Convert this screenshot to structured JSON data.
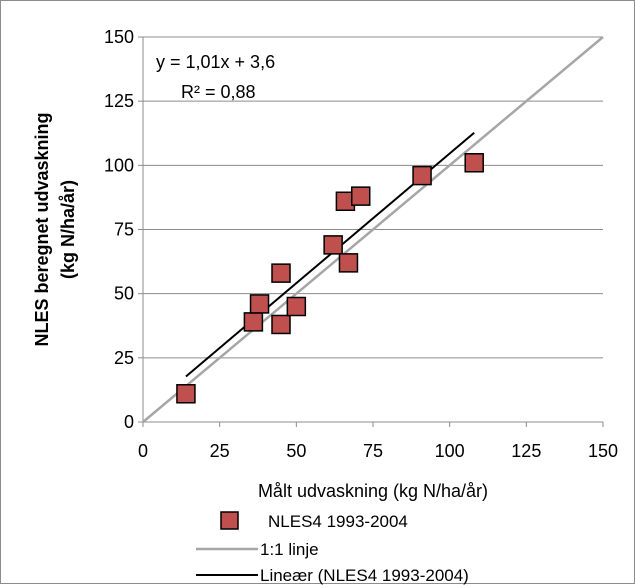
{
  "chart_data": {
    "type": "scatter",
    "xlabel": "Målt udvaskning (kg N/ha/år)",
    "ylabel_line1": "NLES beregnet udvaskning",
    "ylabel_line2": "(kg N/ha/år)",
    "xlim": [
      0,
      150
    ],
    "ylim": [
      0,
      150
    ],
    "xticks": [
      "0",
      "25",
      "50",
      "75",
      "100",
      "125",
      "150"
    ],
    "yticks": [
      "0",
      "25",
      "50",
      "75",
      "100",
      "125",
      "150"
    ],
    "grid": "horizontal",
    "legend_position": "bottom",
    "annotation": {
      "equation": "y = 1,01x + 3,6",
      "r2": "R² = 0,88"
    },
    "series": [
      {
        "name": "NLES4 1993-2004",
        "kind": "markers",
        "marker": "square",
        "color": "#c0504d",
        "edge_color": "#000000",
        "x": [
          14,
          36,
          38,
          45,
          45,
          50,
          62,
          66,
          67,
          71,
          91,
          108
        ],
        "y": [
          11,
          39,
          46,
          58,
          38,
          45,
          69,
          86,
          62,
          88,
          96,
          101
        ]
      },
      {
        "name": "1:1 linje",
        "kind": "line",
        "color": "#a6a6a6",
        "x": [
          0,
          150
        ],
        "y": [
          0,
          150
        ]
      },
      {
        "name": "Lineær (NLES4 1993-2004)",
        "kind": "line",
        "color": "#000000",
        "x": [
          14,
          108
        ],
        "y": [
          17.74,
          112.68
        ]
      }
    ]
  }
}
